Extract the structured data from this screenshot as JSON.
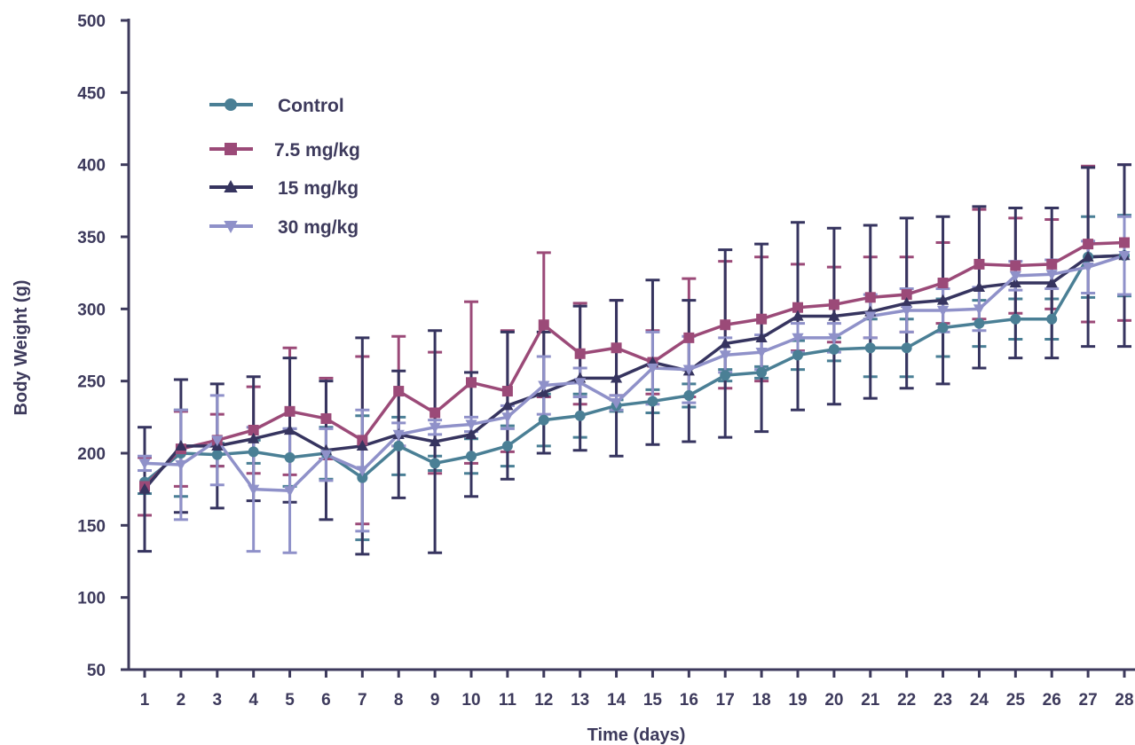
{
  "chart_data": {
    "type": "line",
    "title": "",
    "xlabel": "Time (days)",
    "ylabel": "Body Weight (g)",
    "xlim": [
      1,
      28
    ],
    "ylim": [
      50,
      500
    ],
    "yticks": [
      50,
      100,
      150,
      200,
      250,
      300,
      350,
      400,
      450,
      500
    ],
    "x": [
      1,
      2,
      3,
      4,
      5,
      6,
      7,
      8,
      9,
      10,
      11,
      12,
      13,
      14,
      15,
      16,
      17,
      18,
      19,
      20,
      21,
      22,
      23,
      24,
      25,
      26,
      27,
      28
    ],
    "grid": false,
    "legend_position": "top-left",
    "series": [
      {
        "name": "Control",
        "color": "#4a7f95",
        "marker": "circle",
        "values": [
          180,
          200,
          199,
          201,
          197,
          200,
          183,
          205,
          193,
          198,
          205,
          223,
          226,
          233,
          236,
          240,
          254,
          256,
          268,
          272,
          273,
          273,
          287,
          290,
          293,
          293,
          336,
          337
        ],
        "error": [
          8,
          30,
          8,
          8,
          20,
          18,
          43,
          20,
          5,
          12,
          14,
          18,
          15,
          4,
          8,
          8,
          4,
          4,
          10,
          8,
          20,
          20,
          20,
          16,
          14,
          14,
          28,
          28
        ]
      },
      {
        "name": "7.5 mg/kg",
        "color": "#9b4a78",
        "marker": "square",
        "values": [
          177,
          203,
          209,
          216,
          229,
          224,
          209,
          243,
          228,
          249,
          243,
          289,
          269,
          273,
          263,
          280,
          289,
          293,
          301,
          303,
          308,
          310,
          318,
          331,
          330,
          331,
          345,
          346
        ],
        "error": [
          20,
          26,
          18,
          30,
          44,
          28,
          58,
          38,
          42,
          56,
          42,
          50,
          35,
          33,
          22,
          41,
          44,
          43,
          30,
          26,
          28,
          26,
          28,
          38,
          33,
          31,
          54,
          54
        ]
      },
      {
        "name": "15 mg/kg",
        "color": "#36345f",
        "marker": "triangle",
        "values": [
          175,
          205,
          205,
          210,
          216,
          202,
          205,
          213,
          208,
          213,
          233,
          242,
          252,
          252,
          263,
          257,
          276,
          280,
          295,
          295,
          298,
          304,
          306,
          315,
          318,
          318,
          336,
          337
        ],
        "error": [
          43,
          46,
          43,
          43,
          50,
          48,
          75,
          44,
          77,
          43,
          51,
          42,
          50,
          54,
          57,
          49,
          65,
          65,
          65,
          61,
          60,
          59,
          58,
          56,
          52,
          52,
          62,
          63
        ]
      },
      {
        "name": "30 mg/kg",
        "color": "#8f91c9",
        "marker": "triangle-down",
        "values": [
          193,
          192,
          209,
          175,
          174,
          199,
          188,
          213,
          218,
          220,
          225,
          247,
          249,
          235,
          259,
          258,
          268,
          270,
          280,
          280,
          295,
          299,
          299,
          300,
          323,
          324,
          329,
          337
        ],
        "error": [
          5,
          38,
          31,
          43,
          43,
          18,
          42,
          8,
          5,
          5,
          8,
          20,
          10,
          5,
          25,
          23,
          12,
          12,
          10,
          10,
          15,
          15,
          15,
          15,
          10,
          10,
          18,
          27
        ]
      }
    ]
  }
}
